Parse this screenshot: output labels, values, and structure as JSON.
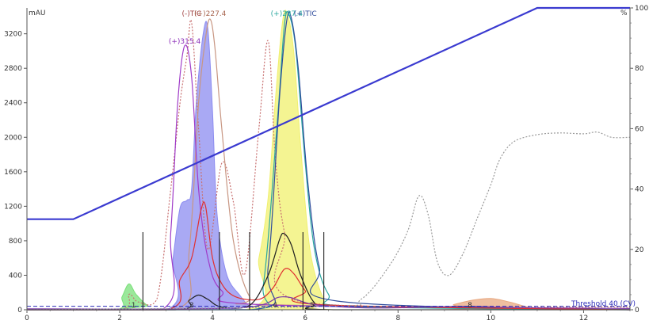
{
  "chart_data": {
    "type": "line",
    "x_axis": {
      "min": 0,
      "max": 13,
      "ticks": [
        0,
        2,
        4,
        6,
        8,
        10,
        12
      ],
      "ticks_labels": [
        "0",
        "2",
        "4",
        "6",
        "8",
        "10",
        "12"
      ]
    },
    "y_left": {
      "unit": "mAU",
      "min": 0,
      "max": 3500,
      "ticks": [
        0,
        400,
        800,
        1200,
        1600,
        2000,
        2400,
        2800,
        3200
      ],
      "ticks_labels": [
        "0",
        "400",
        "800",
        "1200",
        "1600",
        "2000",
        "2400",
        "2800",
        "3200"
      ]
    },
    "y_right": {
      "unit": "%",
      "min": 0,
      "max": 100,
      "ticks": [
        0,
        20,
        40,
        60,
        80,
        100
      ],
      "ticks_labels": [
        "0",
        "20",
        "40",
        "60",
        "80",
        "100"
      ]
    },
    "series": [
      {
        "name": "(-)TIC",
        "style": "dotted",
        "color": "#c87070",
        "points": [
          [
            0,
            0
          ],
          [
            2,
            0
          ],
          [
            2.2,
            180
          ],
          [
            2.4,
            90
          ],
          [
            2.8,
            120
          ],
          [
            3.1,
            1400
          ],
          [
            3.3,
            2400
          ],
          [
            3.45,
            2950
          ],
          [
            3.55,
            3330
          ],
          [
            3.7,
            2100
          ],
          [
            3.9,
            700
          ],
          [
            4.2,
            1700
          ],
          [
            4.45,
            1250
          ],
          [
            4.7,
            420
          ],
          [
            5.0,
            2100
          ],
          [
            5.2,
            3120
          ],
          [
            5.35,
            1800
          ],
          [
            5.55,
            900
          ],
          [
            6.0,
            80
          ],
          [
            13,
            30
          ]
        ]
      },
      {
        "name": "(+)227.4",
        "style": "solid",
        "color": "#c89682",
        "points": [
          [
            0,
            0
          ],
          [
            3.2,
            0
          ],
          [
            3.5,
            700
          ],
          [
            3.7,
            2400
          ],
          [
            3.85,
            3150
          ],
          [
            3.95,
            3370
          ],
          [
            4.05,
            3050
          ],
          [
            4.2,
            2100
          ],
          [
            4.45,
            800
          ],
          [
            4.8,
            150
          ],
          [
            5.2,
            60
          ],
          [
            13,
            0
          ]
        ]
      },
      {
        "name": "(+)315.4",
        "style": "solid",
        "color": "#a03cc8",
        "points": [
          [
            0,
            0
          ],
          [
            2.9,
            0
          ],
          [
            3.1,
            900
          ],
          [
            3.25,
            2400
          ],
          [
            3.4,
            3060
          ],
          [
            3.55,
            2700
          ],
          [
            3.7,
            1400
          ],
          [
            3.9,
            600
          ],
          [
            4.2,
            220
          ],
          [
            5.0,
            60
          ],
          [
            13,
            0
          ]
        ]
      },
      {
        "name": "(+)237.4",
        "style": "solid",
        "color": "#2aa8a0",
        "points": [
          [
            0,
            0
          ],
          [
            4.8,
            0
          ],
          [
            5.1,
            300
          ],
          [
            5.4,
            2200
          ],
          [
            5.55,
            3300
          ],
          [
            5.65,
            3420
          ],
          [
            5.8,
            3000
          ],
          [
            6.0,
            1700
          ],
          [
            6.2,
            700
          ],
          [
            6.5,
            180
          ],
          [
            7.0,
            40
          ],
          [
            13,
            0
          ]
        ]
      },
      {
        "name": "(+)TIC",
        "style": "solid",
        "color": "#2f4c9c",
        "points": [
          [
            0,
            0
          ],
          [
            4.9,
            0
          ],
          [
            5.2,
            500
          ],
          [
            5.45,
            2500
          ],
          [
            5.6,
            3350
          ],
          [
            5.7,
            3380
          ],
          [
            5.85,
            2800
          ],
          [
            6.05,
            1500
          ],
          [
            6.3,
            500
          ],
          [
            6.7,
            100
          ],
          [
            13,
            0
          ]
        ]
      },
      {
        "name": "",
        "role": "filled peak",
        "color": "#8c8cf0",
        "fill": true,
        "points": [
          [
            0,
            0
          ],
          [
            3.0,
            0
          ],
          [
            3.15,
            600
          ],
          [
            3.3,
            1180
          ],
          [
            3.45,
            1270
          ],
          [
            3.55,
            1400
          ],
          [
            3.65,
            2400
          ],
          [
            3.8,
            3200
          ],
          [
            3.9,
            3260
          ],
          [
            4.0,
            2300
          ],
          [
            4.1,
            1100
          ],
          [
            4.3,
            420
          ],
          [
            4.6,
            160
          ],
          [
            4.8,
            40
          ],
          [
            5.0,
            0
          ],
          [
            13,
            0
          ]
        ]
      },
      {
        "name": "",
        "role": "filled peak",
        "color": "#f0f06e",
        "fill": true,
        "points": [
          [
            0,
            0
          ],
          [
            4.7,
            0
          ],
          [
            5.0,
            600
          ],
          [
            5.2,
            1300
          ],
          [
            5.35,
            2400
          ],
          [
            5.5,
            3300
          ],
          [
            5.6,
            3450
          ],
          [
            5.75,
            3000
          ],
          [
            5.9,
            1900
          ],
          [
            6.1,
            700
          ],
          [
            6.4,
            120
          ],
          [
            6.7,
            0
          ],
          [
            13,
            0
          ]
        ]
      },
      {
        "name": "",
        "role": "filled peak",
        "color": "#7ae07a",
        "fill": true,
        "points": [
          [
            0,
            0
          ],
          [
            1.9,
            0
          ],
          [
            2.05,
            150
          ],
          [
            2.2,
            300
          ],
          [
            2.35,
            180
          ],
          [
            2.6,
            50
          ],
          [
            2.9,
            0
          ],
          [
            13,
            0
          ]
        ]
      },
      {
        "name": "",
        "role": "filled peak",
        "color": "#e8a880",
        "fill": true,
        "points": [
          [
            0,
            0
          ],
          [
            8.8,
            0
          ],
          [
            9.2,
            60
          ],
          [
            9.6,
            110
          ],
          [
            10.0,
            130
          ],
          [
            10.4,
            90
          ],
          [
            10.8,
            30
          ],
          [
            11.2,
            0
          ],
          [
            13,
            0
          ]
        ]
      },
      {
        "name": "",
        "role": "red trace",
        "style": "solid",
        "color": "#e03030",
        "points": [
          [
            0,
            0
          ],
          [
            3.0,
            0
          ],
          [
            3.3,
            350
          ],
          [
            3.55,
            600
          ],
          [
            3.75,
            1150
          ],
          [
            3.85,
            1200
          ],
          [
            4.0,
            600
          ],
          [
            4.2,
            300
          ],
          [
            4.5,
            150
          ],
          [
            5.0,
            120
          ],
          [
            5.3,
            250
          ],
          [
            5.55,
            470
          ],
          [
            5.75,
            420
          ],
          [
            6.0,
            220
          ],
          [
            6.3,
            60
          ],
          [
            13,
            0
          ]
        ]
      },
      {
        "name": "",
        "role": "black trace",
        "style": "solid",
        "color": "#202020",
        "points": [
          [
            0,
            0
          ],
          [
            3.2,
            0
          ],
          [
            3.5,
            110
          ],
          [
            3.7,
            170
          ],
          [
            3.9,
            120
          ],
          [
            4.2,
            30
          ],
          [
            4.8,
            50
          ],
          [
            5.2,
            400
          ],
          [
            5.45,
            820
          ],
          [
            5.55,
            880
          ],
          [
            5.7,
            750
          ],
          [
            5.9,
            400
          ],
          [
            6.2,
            80
          ],
          [
            6.6,
            0
          ],
          [
            13,
            0
          ]
        ]
      },
      {
        "name": "",
        "role": "baseline trace",
        "style": "solid",
        "color": "#7d3da8",
        "points": [
          [
            0,
            10
          ],
          [
            4.5,
            20
          ],
          [
            5.5,
            150
          ],
          [
            6.2,
            60
          ],
          [
            7.5,
            20
          ],
          [
            9.5,
            40
          ],
          [
            10.5,
            25
          ],
          [
            13,
            15
          ]
        ]
      },
      {
        "name": "",
        "role": "grey dotted trace",
        "style": "dotted",
        "color": "#9a9a9a",
        "points": [
          [
            0,
            0
          ],
          [
            6.5,
            40
          ],
          [
            7.2,
            120
          ],
          [
            7.8,
            500
          ],
          [
            8.2,
            900
          ],
          [
            8.45,
            1320
          ],
          [
            8.65,
            1100
          ],
          [
            8.85,
            550
          ],
          [
            9.1,
            400
          ],
          [
            9.4,
            650
          ],
          [
            9.7,
            1050
          ],
          [
            10.0,
            1450
          ],
          [
            10.2,
            1750
          ],
          [
            10.5,
            1950
          ],
          [
            11.0,
            2030
          ],
          [
            11.5,
            2050
          ],
          [
            12.0,
            2040
          ],
          [
            12.3,
            2060
          ],
          [
            12.6,
            2000
          ],
          [
            13,
            2000
          ]
        ]
      }
    ],
    "gradient": {
      "unit": "%",
      "color": "#3a3ad0",
      "points": [
        [
          0,
          30
        ],
        [
          1,
          30
        ],
        [
          11,
          100
        ],
        [
          13,
          100
        ]
      ]
    },
    "threshold": {
      "label": "Threshold 40 (CV)",
      "value": 40,
      "color": "#2b2bb8"
    },
    "peak_labels": [
      {
        "text": "(-)TIC",
        "x": 3.55,
        "y": 3380,
        "color": "#a04040"
      },
      {
        "text": "(+)227.4",
        "x": 3.95,
        "y": 3380,
        "color": "#a86650"
      },
      {
        "text": "(+)315.4",
        "x": 3.4,
        "y": 3060,
        "color": "#8a2cb8"
      },
      {
        "text": "(+)237.4",
        "x": 5.6,
        "y": 3380,
        "color": "#2aa8a0"
      },
      {
        "text": "(+)TIC",
        "x": 6.0,
        "y": 3380,
        "color": "#2f4c9c"
      }
    ],
    "fraction_markers": [
      2.5,
      4.15,
      4.8,
      5.95,
      6.4
    ],
    "fraction_labels": [
      {
        "text": "1",
        "x": 2.3
      },
      {
        "text": "3",
        "x": 3.55
      },
      {
        "text": "4",
        "x": 5.35
      },
      {
        "text": "5",
        "x": 6.15
      },
      {
        "text": "8",
        "x": 9.55
      }
    ]
  }
}
